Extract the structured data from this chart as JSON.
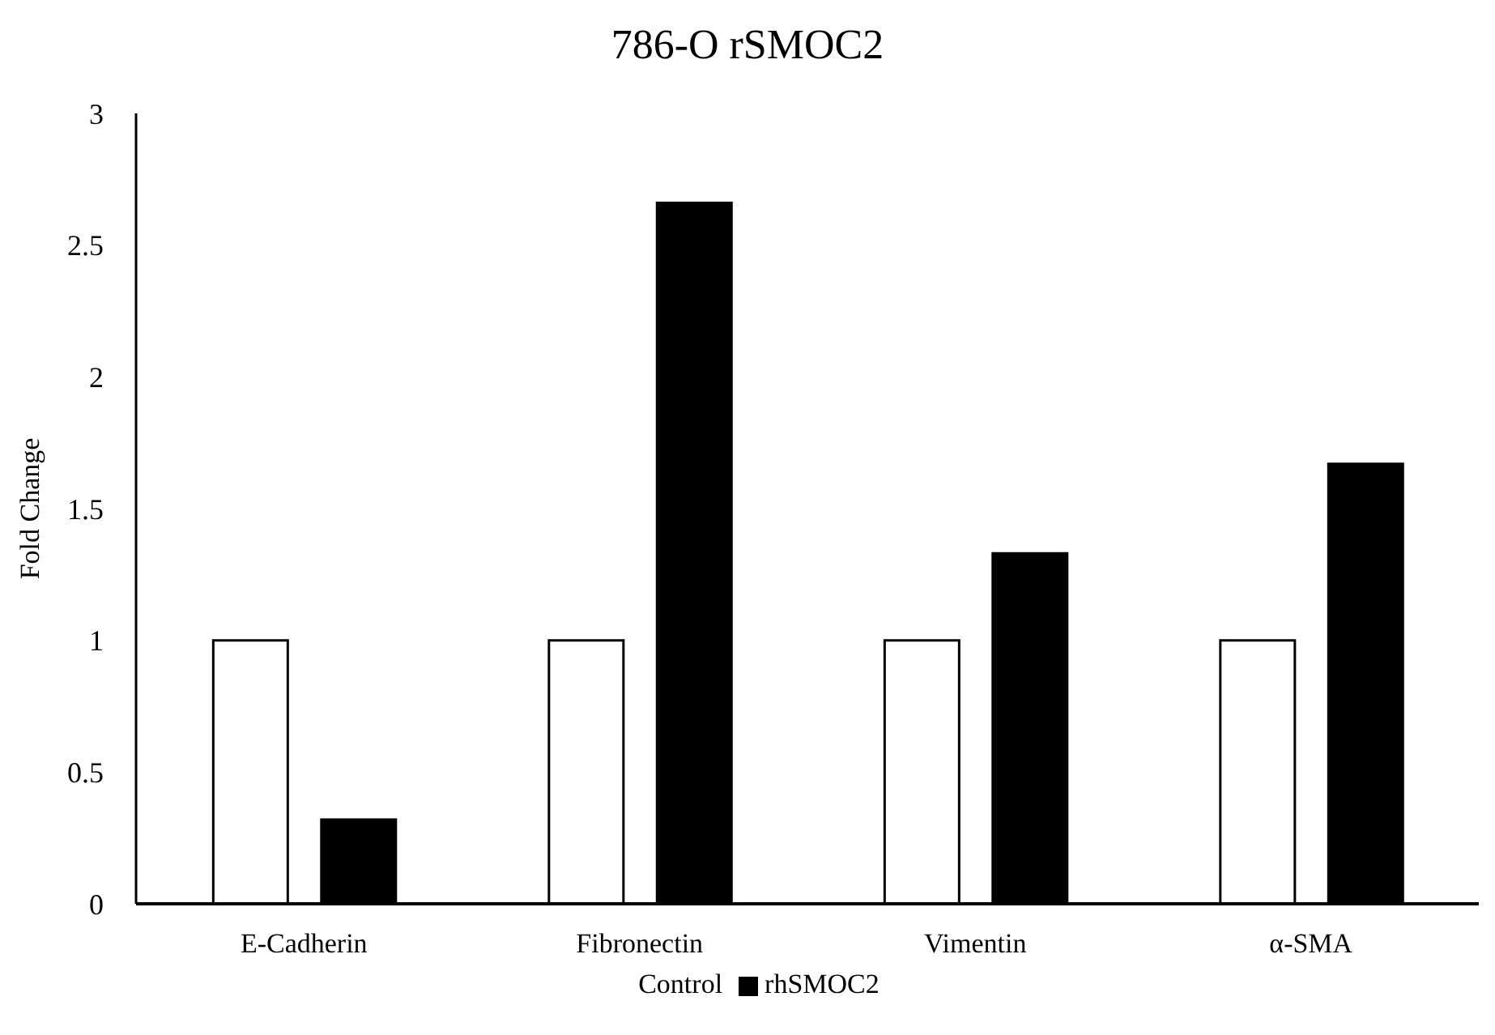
{
  "chart_data": {
    "type": "bar",
    "title": "786-O rSMOC2",
    "ylabel": "Fold Change",
    "categories": [
      "E-Cadherin",
      "Fibronectin",
      "Vimentin",
      "α-SMA"
    ],
    "series": [
      {
        "name": "Control",
        "color": "#ffffff",
        "values": [
          1,
          1,
          1,
          1
        ]
      },
      {
        "name": "rhSMOC2",
        "color": "#000000",
        "values": [
          0.32,
          2.66,
          1.33,
          1.67
        ]
      }
    ],
    "ylim": [
      0,
      3
    ],
    "yticks": [
      0,
      0.5,
      1,
      1.5,
      2,
      2.5,
      3
    ],
    "grid": false,
    "legend": "bottom"
  }
}
